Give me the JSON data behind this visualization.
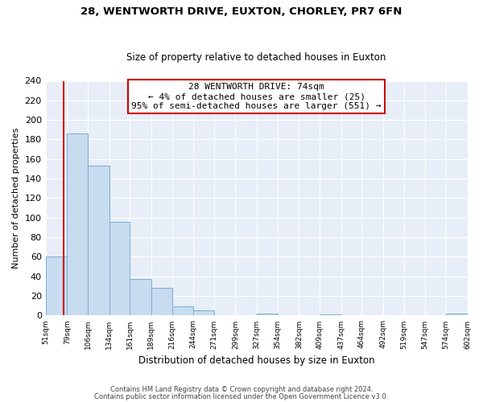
{
  "title1": "28, WENTWORTH DRIVE, EUXTON, CHORLEY, PR7 6FN",
  "title2": "Size of property relative to detached houses in Euxton",
  "xlabel": "Distribution of detached houses by size in Euxton",
  "ylabel": "Number of detached properties",
  "bar_edges": [
    51,
    79,
    106,
    134,
    161,
    189,
    216,
    244,
    271,
    299,
    327,
    354,
    382,
    409,
    437,
    464,
    492,
    519,
    547,
    574,
    602
  ],
  "bar_values": [
    60,
    186,
    153,
    96,
    37,
    28,
    9,
    5,
    0,
    0,
    2,
    0,
    0,
    1,
    0,
    0,
    0,
    0,
    0,
    2
  ],
  "bar_color": "#c8dcf0",
  "bar_edge_color": "#7aaed0",
  "property_line_x": 74,
  "property_line_color": "#cc0000",
  "ylim": [
    0,
    240
  ],
  "yticks": [
    0,
    20,
    40,
    60,
    80,
    100,
    120,
    140,
    160,
    180,
    200,
    220,
    240
  ],
  "annotation_title": "28 WENTWORTH DRIVE: 74sqm",
  "annotation_line1": "← 4% of detached houses are smaller (25)",
  "annotation_line2": "95% of semi-detached houses are larger (551) →",
  "annotation_box_color": "#ffffff",
  "annotation_box_edge": "#cc0000",
  "footer1": "Contains HM Land Registry data © Crown copyright and database right 2024.",
  "footer2": "Contains public sector information licensed under the Open Government Licence v3.0.",
  "tick_labels": [
    "51sqm",
    "79sqm",
    "106sqm",
    "134sqm",
    "161sqm",
    "189sqm",
    "216sqm",
    "244sqm",
    "271sqm",
    "299sqm",
    "327sqm",
    "354sqm",
    "382sqm",
    "409sqm",
    "437sqm",
    "464sqm",
    "492sqm",
    "519sqm",
    "547sqm",
    "574sqm",
    "602sqm"
  ],
  "background_color": "#e8eef8",
  "grid_color": "#ffffff",
  "title1_fontsize": 9.5,
  "title2_fontsize": 8.5,
  "xlabel_fontsize": 8.5,
  "ylabel_fontsize": 8.0,
  "tick_fontsize": 6.5,
  "ytick_fontsize": 8.0,
  "ann_fontsize": 8.0,
  "footer_fontsize": 6.0
}
